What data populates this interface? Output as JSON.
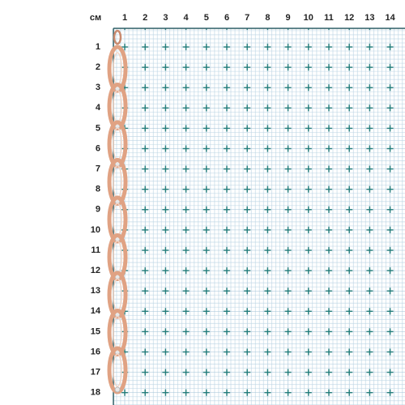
{
  "unit_label": "см",
  "columns": [
    1,
    2,
    3,
    4,
    5,
    6,
    7,
    8,
    9,
    10,
    11,
    12,
    13,
    14
  ],
  "rows": [
    1,
    2,
    3,
    4,
    5,
    6,
    7,
    8,
    9,
    10,
    11,
    12,
    13,
    14,
    15,
    16,
    17,
    18
  ]
}
